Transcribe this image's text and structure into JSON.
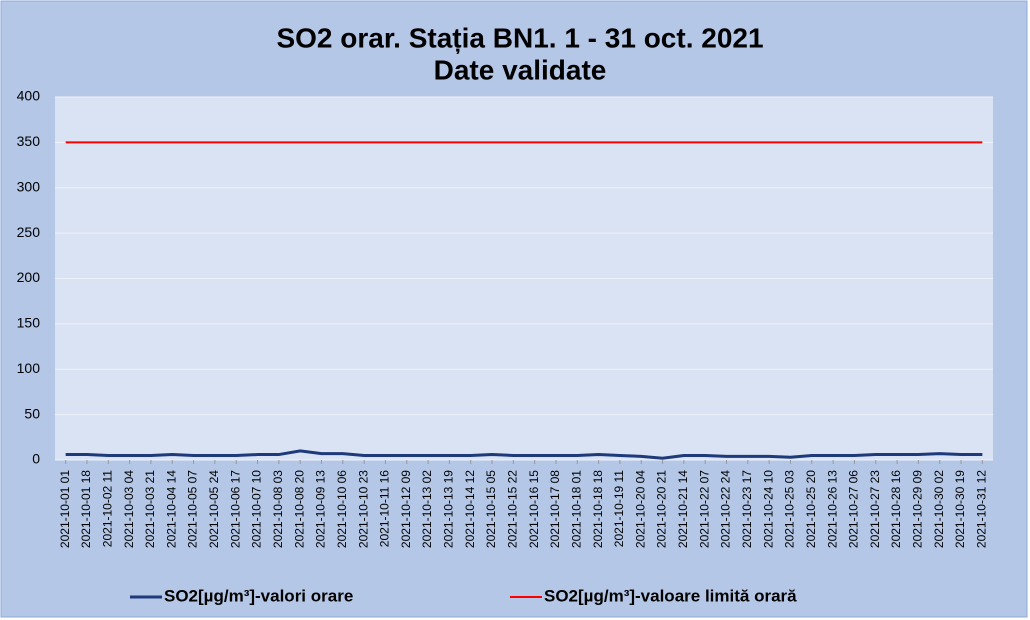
{
  "chart_data": {
    "type": "line",
    "title": [
      "SO2 orar. Stația BN1. 1 - 31 oct. 2021",
      "Date validate"
    ],
    "categories": [
      "2021-10-01 01",
      "2021-10-01 18",
      "2021-10-02 11",
      "2021-10-03 04",
      "2021-10-03 21",
      "2021-10-04 14",
      "2021-10-05 07",
      "2021-10-05 24",
      "2021-10-06 17",
      "2021-10-07 10",
      "2021-10-08 03",
      "2021-10-08 20",
      "2021-10-09 13",
      "2021-10-10 06",
      "2021-10-10 23",
      "2021-10-11 16",
      "2021-10-12 09",
      "2021-10-13 02",
      "2021-10-13 19",
      "2021-10-14 12",
      "2021-10-15 05",
      "2021-10-15 22",
      "2021-10-16 15",
      "2021-10-17 08",
      "2021-10-18 01",
      "2021-10-18 18",
      "2021-10-19 11",
      "2021-10-20 04",
      "2021-10-20 21",
      "2021-10-21 14",
      "2021-10-22 07",
      "2021-10-22 24",
      "2021-10-23 17",
      "2021-10-24 10",
      "2021-10-25 03",
      "2021-10-25 20",
      "2021-10-26 13",
      "2021-10-27 06",
      "2021-10-27 23",
      "2021-10-28 16",
      "2021-10-29 09",
      "2021-10-30 02",
      "2021-10-30 19",
      "2021-10-31 12"
    ],
    "series": [
      {
        "name": "SO2[µg/m³]-valori orare",
        "color": "#1f3a7a",
        "values": [
          6,
          6,
          5,
          5,
          5,
          6,
          5,
          5,
          5,
          6,
          6,
          10,
          7,
          7,
          5,
          5,
          5,
          5,
          5,
          5,
          6,
          5,
          5,
          5,
          5,
          6,
          5,
          4,
          2,
          5,
          5,
          4,
          4,
          4,
          3,
          5,
          5,
          5,
          6,
          6,
          6,
          7,
          6,
          6
        ]
      },
      {
        "name": "SO2[µg/m³]-valoare limită orară",
        "color": "#ff0000",
        "values": [
          350,
          350,
          350,
          350,
          350,
          350,
          350,
          350,
          350,
          350,
          350,
          350,
          350,
          350,
          350,
          350,
          350,
          350,
          350,
          350,
          350,
          350,
          350,
          350,
          350,
          350,
          350,
          350,
          350,
          350,
          350,
          350,
          350,
          350,
          350,
          350,
          350,
          350,
          350,
          350,
          350,
          350,
          350,
          350
        ]
      }
    ],
    "ylim": [
      0,
      400
    ],
    "yticks": [
      0,
      50,
      100,
      150,
      200,
      250,
      300,
      350,
      400
    ],
    "grid": true
  }
}
